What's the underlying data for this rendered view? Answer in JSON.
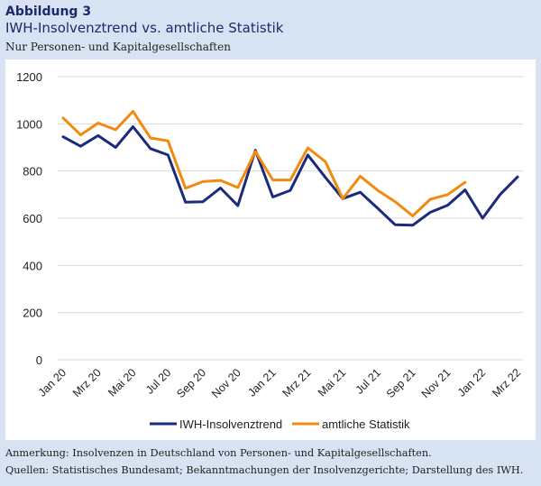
{
  "header": {
    "figure_label": "Abbildung 3",
    "title": "IWH-Insolvenztrend vs. amtliche Statistik",
    "subtitle": "Nur Personen- und Kapitalgesellschaften"
  },
  "footer": {
    "note": "Anmerkung: Insolvenzen in Deutschland von Personen- und Kapitalgesellschaften.",
    "sources": "Quellen: Statistisches Bundesamt; Bekanntmachungen der Insolvenzgerichte; Darstellung des IWH."
  },
  "colors": {
    "navy": "#1b2a7a",
    "orange": "#f08a10",
    "grid": "#d9d9d9",
    "background": "#d7e2f2"
  },
  "chart_data": {
    "type": "line",
    "title": "",
    "xlabel": "",
    "ylabel": "",
    "ylim": [
      0,
      1200
    ],
    "yticks": [
      0,
      200,
      400,
      600,
      800,
      1000,
      1200
    ],
    "grid": true,
    "legend_position": "bottom",
    "x": [
      "Jan 20",
      "Feb 20",
      "Mrz 20",
      "Apr 20",
      "Mai 20",
      "Jun 20",
      "Jul 20",
      "Aug 20",
      "Sep 20",
      "Okt 20",
      "Nov 20",
      "Dez 20",
      "Jan 21",
      "Feb 21",
      "Mrz 21",
      "Apr 21",
      "Mai 21",
      "Jun 21",
      "Jul 21",
      "Aug 21",
      "Sep 21",
      "Okt 21",
      "Nov 21",
      "Dez 21",
      "Jan 22",
      "Feb 22",
      "Mrz 22"
    ],
    "xtick_labels": [
      "Jan 20",
      "Mrz 20",
      "Mai 20",
      "Jul 20",
      "Sep 20",
      "Nov 20",
      "Jan 21",
      "Mrz 21",
      "Mai 21",
      "Jul 21",
      "Sep 21",
      "Nov 21",
      "Jan 22",
      "Mrz 22"
    ],
    "series": [
      {
        "name": "IWH-Insolvenztrend",
        "color": "#1b2a7a",
        "values": [
          945,
          905,
          950,
          900,
          988,
          895,
          868,
          668,
          670,
          728,
          653,
          888,
          690,
          718,
          868,
          773,
          683,
          710,
          642,
          572,
          570,
          625,
          655,
          720,
          600,
          700,
          775
        ]
      },
      {
        "name": "amtliche Statistik",
        "color": "#f08a10",
        "values": [
          1025,
          953,
          1003,
          975,
          1053,
          940,
          928,
          727,
          755,
          760,
          730,
          883,
          762,
          762,
          898,
          840,
          683,
          778,
          718,
          670,
          610,
          680,
          700,
          752,
          null,
          null,
          null
        ]
      }
    ]
  }
}
